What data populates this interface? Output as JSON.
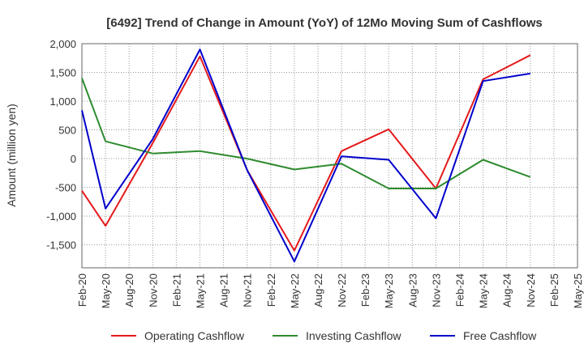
{
  "chart_data": {
    "type": "line",
    "title": "[6492]  Trend of Change in Amount (YoY) of 12Mo Moving Sum of Cashflows",
    "xlabel": "",
    "ylabel": "Amount (million yen)",
    "ylim": [
      -1900,
      2000
    ],
    "yticks": [
      2000,
      1500,
      1000,
      500,
      0,
      -500,
      -1000,
      -1500
    ],
    "ytick_labels": [
      "2,000",
      "1,500",
      "1,000",
      "500",
      "0",
      "-500",
      "-1,000",
      "-1,500"
    ],
    "grid": true,
    "legend_position": "bottom",
    "categories": [
      "Feb-20",
      "May-20",
      "Aug-20",
      "Nov-20",
      "Feb-21",
      "May-21",
      "Aug-21",
      "Nov-21",
      "Feb-22",
      "May-22",
      "Aug-22",
      "Nov-22",
      "Feb-23",
      "May-23",
      "Aug-23",
      "Nov-23",
      "Feb-24",
      "May-24",
      "Aug-24",
      "Nov-24",
      "Feb-25",
      "May-25"
    ],
    "series": [
      {
        "name": "Operating Cashflow",
        "color": "#e41a1c",
        "values": [
          -560,
          -1170,
          null,
          270,
          null,
          1780,
          null,
          -200,
          null,
          -1600,
          null,
          130,
          null,
          510,
          null,
          -520,
          null,
          1380,
          null,
          1800,
          null,
          null
        ]
      },
      {
        "name": "Investing Cashflow",
        "color": "#2e8b2e",
        "values": [
          1400,
          300,
          null,
          90,
          null,
          130,
          null,
          0,
          null,
          -190,
          null,
          -90,
          null,
          -520,
          null,
          -520,
          null,
          -20,
          null,
          -320,
          null,
          null
        ]
      },
      {
        "name": "Free Cashflow",
        "color": "#0000cc",
        "values": [
          840,
          -870,
          null,
          340,
          null,
          1900,
          null,
          -200,
          null,
          -1790,
          null,
          40,
          null,
          -20,
          null,
          -1040,
          null,
          1350,
          null,
          1480,
          null,
          null
        ]
      }
    ]
  }
}
